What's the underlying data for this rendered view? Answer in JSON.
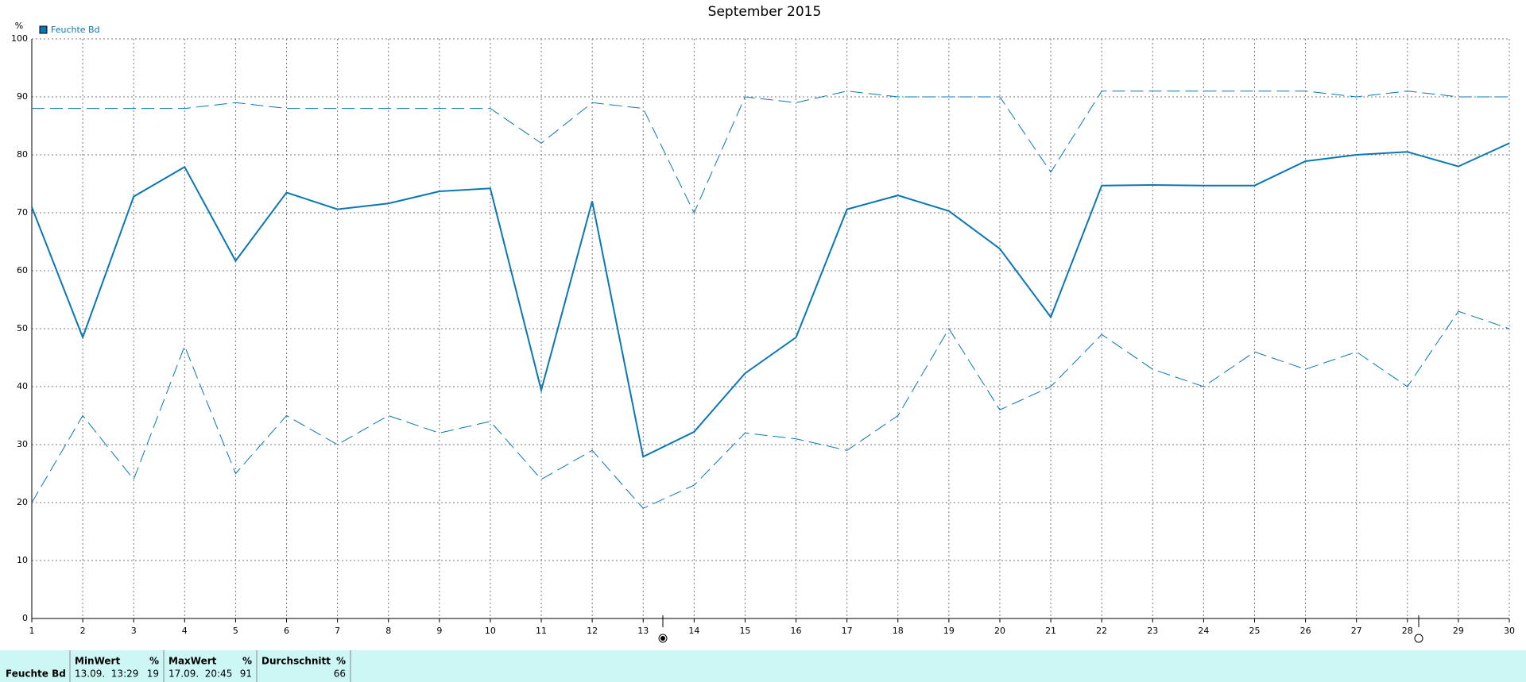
{
  "chart_data": {
    "type": "line",
    "title": "September 2015",
    "ylabel": "%",
    "x": [
      1,
      2,
      3,
      4,
      5,
      6,
      7,
      8,
      9,
      10,
      11,
      12,
      13,
      14,
      15,
      16,
      17,
      18,
      19,
      20,
      21,
      22,
      23,
      24,
      25,
      26,
      27,
      28,
      29,
      30
    ],
    "xlim": [
      1,
      30
    ],
    "xticks": [
      1,
      2,
      3,
      4,
      5,
      6,
      7,
      8,
      9,
      10,
      11,
      12,
      13,
      14,
      15,
      16,
      17,
      18,
      19,
      20,
      21,
      22,
      23,
      24,
      25,
      26,
      27,
      28,
      29,
      30
    ],
    "ylim": [
      0,
      100
    ],
    "yticks": [
      0,
      10,
      20,
      30,
      40,
      50,
      60,
      70,
      80,
      90,
      100
    ],
    "grid": true,
    "legend": "top-left",
    "series": [
      {
        "name": "Feuchte Bd",
        "color": "#0a77b5",
        "style": "solid",
        "values": [
          71,
          48.5,
          72.8,
          77.9,
          61.7,
          73.5,
          70.6,
          71.6,
          73.7,
          74.2,
          39.4,
          72,
          27.9,
          32.2,
          42.3,
          48.5,
          70.6,
          73,
          70.3,
          63.8,
          52,
          74.7,
          74.8,
          74.7,
          74.7,
          78.9,
          80,
          80.5,
          78,
          82
        ]
      },
      {
        "color": "#0a77b5",
        "style": "dashed",
        "values": [
          88,
          88,
          88,
          88,
          89,
          88,
          88,
          88,
          88,
          88,
          82,
          89,
          88,
          70,
          90,
          89,
          91,
          90,
          90,
          90,
          77,
          91,
          91,
          91,
          91,
          91,
          90,
          91,
          90,
          90
        ]
      },
      {
        "color": "#0a77b5",
        "style": "dashed",
        "values": [
          20,
          35,
          24,
          47,
          25,
          35,
          30,
          35,
          32,
          34,
          24,
          29,
          19,
          23,
          32,
          31,
          29,
          35,
          50,
          36,
          40,
          49,
          43,
          40,
          46,
          43,
          46,
          40,
          53,
          50
        ]
      }
    ]
  },
  "stats_table": {
    "row_label": "Feuchte Bd",
    "columns": [
      {
        "header": "MinWert",
        "unit": "%",
        "time": "13.09.  13:29",
        "value": 19
      },
      {
        "header": "MaxWert",
        "unit": "%",
        "time": "17.09.  20:45",
        "value": 91
      },
      {
        "header": "Durchschnitt",
        "unit": "%",
        "value": 66
      }
    ]
  }
}
